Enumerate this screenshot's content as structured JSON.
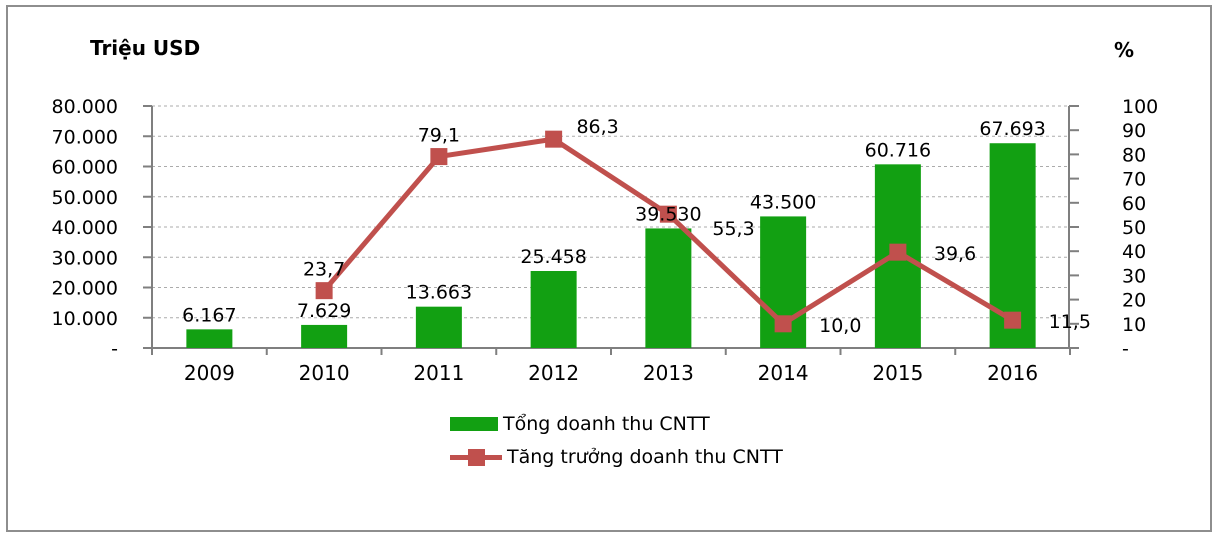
{
  "chart_data": {
    "type": "bar",
    "subtype": "bar-line-combo",
    "categories": [
      "2009",
      "2010",
      "2011",
      "2012",
      "2013",
      "2014",
      "2015",
      "2016"
    ],
    "series": [
      {
        "name": "Tổng doanh thu CNTT",
        "type": "bar",
        "axis": "left",
        "color": "#12A012",
        "values": [
          6167,
          7629,
          13663,
          25458,
          39530,
          43500,
          60716,
          67693
        ],
        "value_labels": [
          "6.167",
          "7.629",
          "13.663",
          "25.458",
          "39.530",
          "43.500",
          "60.716",
          "67.693"
        ]
      },
      {
        "name": "Tăng trưởng doanh thu CNTT",
        "type": "line",
        "axis": "right",
        "color": "#C0504D",
        "values": [
          null,
          23.7,
          79.1,
          86.3,
          55.3,
          10.0,
          39.6,
          11.5
        ],
        "value_labels": [
          "",
          "23,7",
          "79,1",
          "86,3",
          "55,3",
          "10,0",
          "39,6",
          "11,5"
        ],
        "label_placements": [
          "",
          "above",
          "above",
          "above-right",
          "right-down",
          "right",
          "right",
          "right"
        ]
      }
    ],
    "left_axis": {
      "title": "Triệu USD",
      "min": 0,
      "max": 80000,
      "tick_labels": [
        "80.000",
        "70.000",
        "60.000",
        "50.000",
        "40.000",
        "30.000",
        "20.000",
        "10.000",
        "-"
      ]
    },
    "right_axis": {
      "title": "%",
      "min": 0,
      "max": 100,
      "tick_labels": [
        "100",
        "90",
        "80",
        "70",
        "60",
        "50",
        "40",
        "30",
        "20",
        "10",
        "-"
      ]
    },
    "grid": {
      "horizontal": true,
      "style": "dashed"
    },
    "legend_position": "bottom-center",
    "colors": {
      "bar": "#12A012",
      "line": "#C0504D",
      "gridline": "#ABABAB",
      "axis": "#7F7F7F",
      "text": "#000000",
      "border": "#8E8E8E",
      "background": "#FFFFFF"
    }
  }
}
